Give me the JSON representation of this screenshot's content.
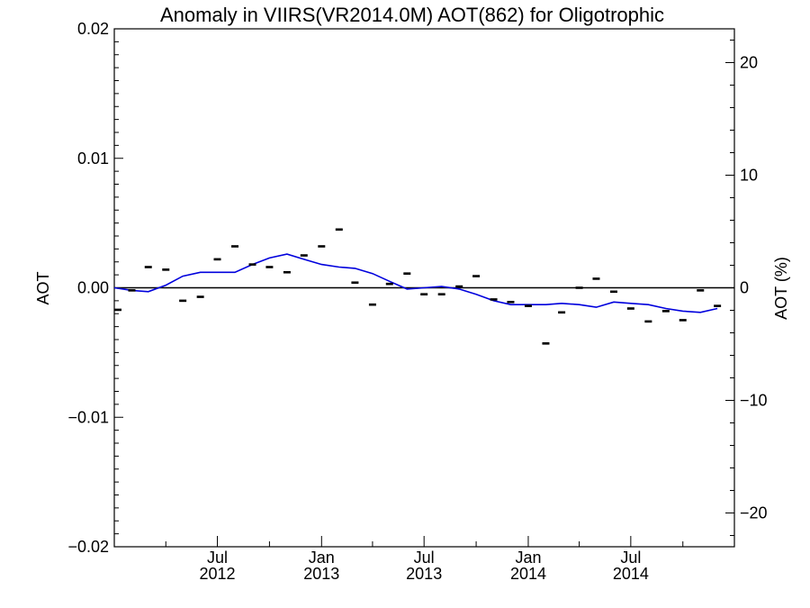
{
  "chart_data": {
    "type": "scatter",
    "title": "Anomaly in VIIRS(VR2014.0M) AOT(862) for Oligotrophic",
    "ylabel": "AOT",
    "y2label": "AOT (%)",
    "xlim": [
      "2012-01-01",
      "2014-12-31"
    ],
    "ylim": [
      -0.02,
      0.02
    ],
    "y2lim": [
      -23.0,
      23.0
    ],
    "yticks": [
      "0.02",
      "0.01",
      "0.00",
      "−0.01",
      "−0.02"
    ],
    "y2ticks": [
      {
        "value": 20,
        "label": "20"
      },
      {
        "value": 10,
        "label": "10"
      },
      {
        "value": 0,
        "label": "0"
      },
      {
        "value": -10,
        "label": "−10"
      },
      {
        "value": -20,
        "label": "−20"
      }
    ],
    "xticks": [
      {
        "date": "2012-07-01",
        "month": "Jul",
        "year": "2012"
      },
      {
        "date": "2013-01-01",
        "month": "Jan",
        "year": "2013"
      },
      {
        "date": "2013-07-01",
        "month": "Jul",
        "year": "2013"
      },
      {
        "date": "2014-01-01",
        "month": "Jan",
        "year": "2014"
      },
      {
        "date": "2014-07-01",
        "month": "Jul",
        "year": "2014"
      }
    ],
    "grid": false,
    "legend": "none",
    "zero_line": true,
    "series": [
      {
        "kind": "monthly-markers",
        "color": "#000000",
        "points": [
          {
            "x": "2012-01-01",
            "y": -0.0017
          },
          {
            "x": "2012-02-01",
            "y": -0.0002
          },
          {
            "x": "2012-03-01",
            "y": 0.0016
          },
          {
            "x": "2012-04-01",
            "y": 0.0014
          },
          {
            "x": "2012-05-01",
            "y": -0.001
          },
          {
            "x": "2012-06-01",
            "y": -0.0007
          },
          {
            "x": "2012-07-01",
            "y": 0.0022
          },
          {
            "x": "2012-08-01",
            "y": 0.0032
          },
          {
            "x": "2012-09-01",
            "y": 0.0018
          },
          {
            "x": "2012-10-01",
            "y": 0.0016
          },
          {
            "x": "2012-11-01",
            "y": 0.0012
          },
          {
            "x": "2012-12-01",
            "y": 0.0025
          },
          {
            "x": "2013-01-01",
            "y": 0.0032
          },
          {
            "x": "2013-02-01",
            "y": 0.0045
          },
          {
            "x": "2013-03-01",
            "y": 0.0004
          },
          {
            "x": "2013-04-01",
            "y": -0.0013
          },
          {
            "x": "2013-05-01",
            "y": 0.0003
          },
          {
            "x": "2013-06-01",
            "y": 0.0011
          },
          {
            "x": "2013-07-01",
            "y": -0.0005
          },
          {
            "x": "2013-08-01",
            "y": -0.0005
          },
          {
            "x": "2013-09-01",
            "y": 0.0001
          },
          {
            "x": "2013-10-01",
            "y": 0.0009
          },
          {
            "x": "2013-11-01",
            "y": -0.0009
          },
          {
            "x": "2013-12-01",
            "y": -0.0011
          },
          {
            "x": "2014-01-01",
            "y": -0.0014
          },
          {
            "x": "2014-02-01",
            "y": -0.0043
          },
          {
            "x": "2014-03-01",
            "y": -0.0019
          },
          {
            "x": "2014-04-01",
            "y": 0.0
          },
          {
            "x": "2014-05-01",
            "y": 0.0007
          },
          {
            "x": "2014-06-01",
            "y": -0.0003
          },
          {
            "x": "2014-07-01",
            "y": -0.0016
          },
          {
            "x": "2014-08-01",
            "y": -0.0026
          },
          {
            "x": "2014-09-01",
            "y": -0.0018
          },
          {
            "x": "2014-10-01",
            "y": -0.0025
          },
          {
            "x": "2014-11-01",
            "y": -0.0002
          },
          {
            "x": "2014-12-01",
            "y": -0.0014
          }
        ]
      },
      {
        "kind": "smoothed-line",
        "color": "#0000dd",
        "points": [
          {
            "x": "2012-01-01",
            "y": 0.0
          },
          {
            "x": "2012-02-01",
            "y": -0.0002
          },
          {
            "x": "2012-03-01",
            "y": -0.0003
          },
          {
            "x": "2012-04-01",
            "y": 0.0002
          },
          {
            "x": "2012-05-01",
            "y": 0.0009
          },
          {
            "x": "2012-06-01",
            "y": 0.0012
          },
          {
            "x": "2012-07-01",
            "y": 0.0012
          },
          {
            "x": "2012-08-01",
            "y": 0.0012
          },
          {
            "x": "2012-09-01",
            "y": 0.0018
          },
          {
            "x": "2012-10-01",
            "y": 0.0023
          },
          {
            "x": "2012-11-01",
            "y": 0.0026
          },
          {
            "x": "2012-12-01",
            "y": 0.0022
          },
          {
            "x": "2013-01-01",
            "y": 0.0018
          },
          {
            "x": "2013-02-01",
            "y": 0.0016
          },
          {
            "x": "2013-03-01",
            "y": 0.0015
          },
          {
            "x": "2013-04-01",
            "y": 0.0011
          },
          {
            "x": "2013-05-01",
            "y": 0.0005
          },
          {
            "x": "2013-06-01",
            "y": -0.0001
          },
          {
            "x": "2013-07-01",
            "y": 0.0
          },
          {
            "x": "2013-08-01",
            "y": 0.0001
          },
          {
            "x": "2013-09-01",
            "y": -0.0001
          },
          {
            "x": "2013-10-01",
            "y": -0.0005
          },
          {
            "x": "2013-11-01",
            "y": -0.001
          },
          {
            "x": "2013-12-01",
            "y": -0.0013
          },
          {
            "x": "2014-01-01",
            "y": -0.0013
          },
          {
            "x": "2014-02-01",
            "y": -0.0013
          },
          {
            "x": "2014-03-01",
            "y": -0.0012
          },
          {
            "x": "2014-04-01",
            "y": -0.0013
          },
          {
            "x": "2014-05-01",
            "y": -0.0015
          },
          {
            "x": "2014-06-01",
            "y": -0.0011
          },
          {
            "x": "2014-07-01",
            "y": -0.0012
          },
          {
            "x": "2014-08-01",
            "y": -0.0013
          },
          {
            "x": "2014-09-01",
            "y": -0.0016
          },
          {
            "x": "2014-10-01",
            "y": -0.0018
          },
          {
            "x": "2014-11-01",
            "y": -0.0019
          },
          {
            "x": "2014-12-01",
            "y": -0.0016
          }
        ]
      }
    ]
  }
}
